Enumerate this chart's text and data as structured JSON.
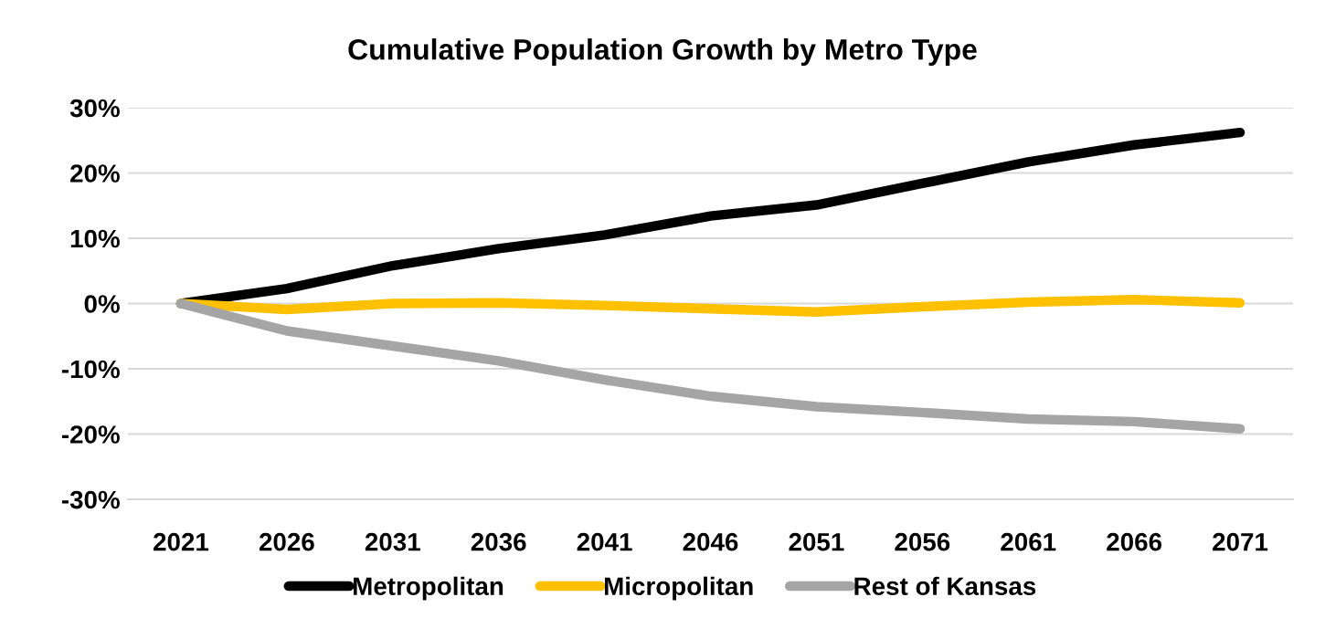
{
  "chart_data": {
    "type": "line",
    "title": "Cumulative Population Growth by Metro Type",
    "categories": [
      "2021",
      "2026",
      "2031",
      "2036",
      "2041",
      "2046",
      "2051",
      "2056",
      "2061",
      "2066",
      "2071"
    ],
    "series": [
      {
        "name": "Metropolitan",
        "color": "#000000",
        "values": [
          0,
          2.3,
          5.8,
          8.4,
          10.5,
          13.4,
          15.1,
          18.4,
          21.7,
          24.3,
          26.2
        ]
      },
      {
        "name": "Micropolitan",
        "color": "#ffc000",
        "values": [
          0,
          -0.9,
          0,
          0.1,
          -0.3,
          -0.8,
          -1.3,
          -0.5,
          0.2,
          0.6,
          0.1
        ]
      },
      {
        "name": "Rest of Kansas",
        "color": "#a5a5a5",
        "values": [
          0,
          -4.2,
          -6.5,
          -8.8,
          -11.7,
          -14.2,
          -15.8,
          -16.7,
          -17.7,
          -18.1,
          -19.2
        ]
      }
    ],
    "ylim": [
      -30,
      30
    ],
    "yticks": [
      {
        "value": -30,
        "label": "-30%"
      },
      {
        "value": -20,
        "label": "-20%"
      },
      {
        "value": -10,
        "label": "-10%"
      },
      {
        "value": 0,
        "label": "0%"
      },
      {
        "value": 10,
        "label": "10%"
      },
      {
        "value": 20,
        "label": "20%"
      },
      {
        "value": 30,
        "label": "30%"
      }
    ],
    "grid": "y",
    "legend": "bottom"
  }
}
